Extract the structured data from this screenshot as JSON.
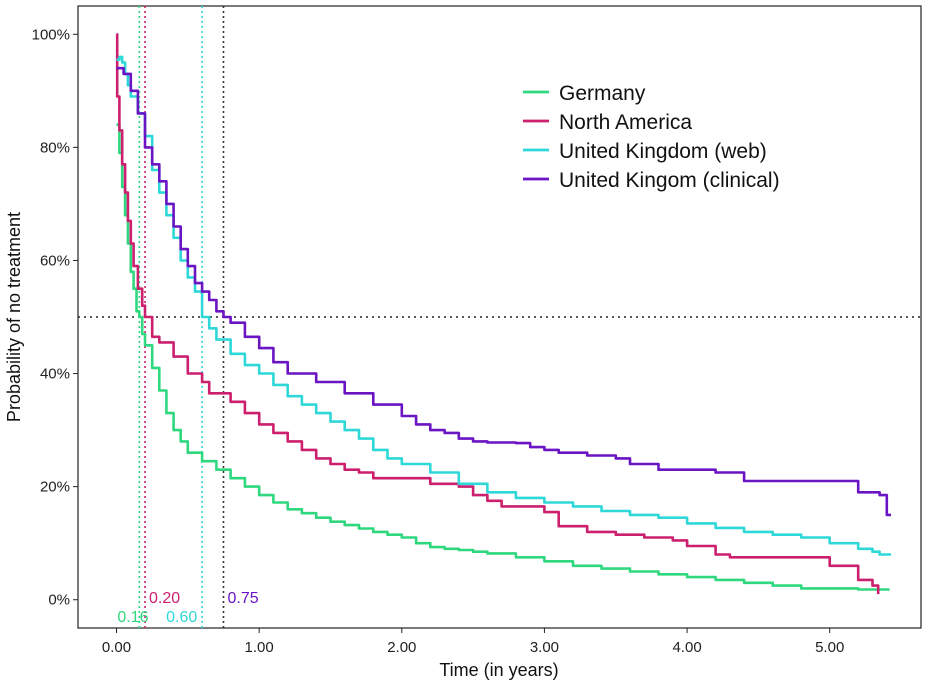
{
  "chart_data": {
    "type": "line",
    "title": "",
    "xlabel": "Time (in years)",
    "ylabel": "Probability of no treatment",
    "xlim": [
      -0.27,
      5.64
    ],
    "ylim": [
      -0.05,
      1.05
    ],
    "x_ticks": [
      0,
      1,
      2,
      3,
      4,
      5
    ],
    "x_tick_labels": [
      "0.00",
      "1.00",
      "2.00",
      "3.00",
      "4.00",
      "5.00"
    ],
    "y_ticks": [
      0,
      0.2,
      0.4,
      0.6,
      0.8,
      1.0
    ],
    "y_tick_labels": [
      "0%",
      "20%",
      "40%",
      "60%",
      "80%",
      "100%"
    ],
    "grid": false,
    "legend_position": "top-right",
    "reference_line_y": 0.5,
    "series": [
      {
        "name": "Germany",
        "color": "#2fd87f",
        "median": 0.16,
        "median_label": "0.16",
        "points": [
          [
            0.0,
            0.84
          ],
          [
            0.02,
            0.79
          ],
          [
            0.04,
            0.73
          ],
          [
            0.06,
            0.68
          ],
          [
            0.08,
            0.63
          ],
          [
            0.1,
            0.58
          ],
          [
            0.12,
            0.55
          ],
          [
            0.14,
            0.51
          ],
          [
            0.16,
            0.5
          ],
          [
            0.18,
            0.47
          ],
          [
            0.2,
            0.45
          ],
          [
            0.25,
            0.41
          ],
          [
            0.3,
            0.37
          ],
          [
            0.35,
            0.33
          ],
          [
            0.4,
            0.3
          ],
          [
            0.45,
            0.28
          ],
          [
            0.5,
            0.26
          ],
          [
            0.6,
            0.245
          ],
          [
            0.7,
            0.23
          ],
          [
            0.8,
            0.215
          ],
          [
            0.9,
            0.2
          ],
          [
            1.0,
            0.185
          ],
          [
            1.1,
            0.172
          ],
          [
            1.2,
            0.16
          ],
          [
            1.3,
            0.153
          ],
          [
            1.4,
            0.145
          ],
          [
            1.5,
            0.138
          ],
          [
            1.6,
            0.132
          ],
          [
            1.7,
            0.126
          ],
          [
            1.8,
            0.12
          ],
          [
            1.9,
            0.115
          ],
          [
            2.0,
            0.11
          ],
          [
            2.1,
            0.1
          ],
          [
            2.2,
            0.093
          ],
          [
            2.3,
            0.09
          ],
          [
            2.4,
            0.088
          ],
          [
            2.5,
            0.085
          ],
          [
            2.6,
            0.082
          ],
          [
            2.8,
            0.075
          ],
          [
            3.0,
            0.068
          ],
          [
            3.2,
            0.06
          ],
          [
            3.4,
            0.055
          ],
          [
            3.6,
            0.05
          ],
          [
            3.8,
            0.045
          ],
          [
            4.0,
            0.04
          ],
          [
            4.2,
            0.035
          ],
          [
            4.4,
            0.03
          ],
          [
            4.6,
            0.025
          ],
          [
            4.8,
            0.02
          ],
          [
            5.0,
            0.02
          ],
          [
            5.2,
            0.018
          ],
          [
            5.42,
            0.018
          ]
        ]
      },
      {
        "name": "North America",
        "color": "#cc1f6e",
        "median": 0.2,
        "median_label": "0.20",
        "points": [
          [
            0.0,
            1.0
          ],
          [
            0.005,
            0.89
          ],
          [
            0.02,
            0.83
          ],
          [
            0.04,
            0.77
          ],
          [
            0.06,
            0.72
          ],
          [
            0.08,
            0.67
          ],
          [
            0.1,
            0.63
          ],
          [
            0.12,
            0.59
          ],
          [
            0.15,
            0.55
          ],
          [
            0.18,
            0.52
          ],
          [
            0.2,
            0.5
          ],
          [
            0.25,
            0.465
          ],
          [
            0.3,
            0.455
          ],
          [
            0.4,
            0.43
          ],
          [
            0.5,
            0.4
          ],
          [
            0.6,
            0.385
          ],
          [
            0.65,
            0.365
          ],
          [
            0.8,
            0.35
          ],
          [
            0.9,
            0.33
          ],
          [
            1.0,
            0.31
          ],
          [
            1.1,
            0.295
          ],
          [
            1.2,
            0.28
          ],
          [
            1.3,
            0.265
          ],
          [
            1.4,
            0.25
          ],
          [
            1.5,
            0.24
          ],
          [
            1.6,
            0.23
          ],
          [
            1.7,
            0.225
          ],
          [
            1.8,
            0.215
          ],
          [
            2.0,
            0.215
          ],
          [
            2.2,
            0.205
          ],
          [
            2.4,
            0.2
          ],
          [
            2.5,
            0.185
          ],
          [
            2.6,
            0.175
          ],
          [
            2.7,
            0.165
          ],
          [
            2.9,
            0.165
          ],
          [
            3.0,
            0.155
          ],
          [
            3.1,
            0.13
          ],
          [
            3.3,
            0.12
          ],
          [
            3.5,
            0.115
          ],
          [
            3.7,
            0.11
          ],
          [
            3.9,
            0.105
          ],
          [
            4.0,
            0.095
          ],
          [
            4.2,
            0.08
          ],
          [
            4.3,
            0.075
          ],
          [
            4.8,
            0.075
          ],
          [
            5.0,
            0.06
          ],
          [
            5.2,
            0.035
          ],
          [
            5.3,
            0.025
          ],
          [
            5.34,
            0.01
          ]
        ]
      },
      {
        "name": "United Kingdom (web)",
        "color": "#2ed8d8",
        "median": 0.6,
        "median_label": "0.60",
        "points": [
          [
            0.0,
            0.955
          ],
          [
            0.02,
            0.96
          ],
          [
            0.04,
            0.95
          ],
          [
            0.06,
            0.93
          ],
          [
            0.08,
            0.91
          ],
          [
            0.1,
            0.89
          ],
          [
            0.15,
            0.86
          ],
          [
            0.2,
            0.82
          ],
          [
            0.25,
            0.76
          ],
          [
            0.3,
            0.72
          ],
          [
            0.35,
            0.68
          ],
          [
            0.4,
            0.64
          ],
          [
            0.45,
            0.6
          ],
          [
            0.5,
            0.57
          ],
          [
            0.55,
            0.545
          ],
          [
            0.6,
            0.5
          ],
          [
            0.65,
            0.48
          ],
          [
            0.7,
            0.46
          ],
          [
            0.8,
            0.435
          ],
          [
            0.9,
            0.415
          ],
          [
            1.0,
            0.4
          ],
          [
            1.1,
            0.38
          ],
          [
            1.2,
            0.36
          ],
          [
            1.3,
            0.345
          ],
          [
            1.4,
            0.33
          ],
          [
            1.5,
            0.315
          ],
          [
            1.6,
            0.3
          ],
          [
            1.7,
            0.285
          ],
          [
            1.8,
            0.265
          ],
          [
            1.9,
            0.25
          ],
          [
            2.0,
            0.24
          ],
          [
            2.2,
            0.225
          ],
          [
            2.4,
            0.205
          ],
          [
            2.6,
            0.19
          ],
          [
            2.8,
            0.18
          ],
          [
            3.0,
            0.172
          ],
          [
            3.2,
            0.165
          ],
          [
            3.4,
            0.157
          ],
          [
            3.6,
            0.15
          ],
          [
            3.8,
            0.145
          ],
          [
            4.0,
            0.135
          ],
          [
            4.2,
            0.127
          ],
          [
            4.4,
            0.12
          ],
          [
            4.6,
            0.115
          ],
          [
            4.8,
            0.11
          ],
          [
            5.0,
            0.1
          ],
          [
            5.2,
            0.09
          ],
          [
            5.3,
            0.085
          ],
          [
            5.35,
            0.08
          ],
          [
            5.43,
            0.08
          ]
        ]
      },
      {
        "name": "United Kingom (clinical)",
        "color": "#6a14c4",
        "median": 0.75,
        "median_label": "0.75",
        "points": [
          [
            0.0,
            0.94
          ],
          [
            0.05,
            0.93
          ],
          [
            0.1,
            0.9
          ],
          [
            0.15,
            0.86
          ],
          [
            0.2,
            0.8
          ],
          [
            0.25,
            0.77
          ],
          [
            0.3,
            0.74
          ],
          [
            0.35,
            0.7
          ],
          [
            0.4,
            0.66
          ],
          [
            0.45,
            0.62
          ],
          [
            0.5,
            0.59
          ],
          [
            0.55,
            0.56
          ],
          [
            0.6,
            0.545
          ],
          [
            0.65,
            0.53
          ],
          [
            0.7,
            0.51
          ],
          [
            0.75,
            0.5
          ],
          [
            0.8,
            0.49
          ],
          [
            0.9,
            0.465
          ],
          [
            1.0,
            0.445
          ],
          [
            1.1,
            0.42
          ],
          [
            1.2,
            0.4
          ],
          [
            1.4,
            0.385
          ],
          [
            1.6,
            0.365
          ],
          [
            1.8,
            0.345
          ],
          [
            2.0,
            0.325
          ],
          [
            2.1,
            0.31
          ],
          [
            2.2,
            0.3
          ],
          [
            2.3,
            0.295
          ],
          [
            2.4,
            0.285
          ],
          [
            2.5,
            0.28
          ],
          [
            2.6,
            0.278
          ],
          [
            2.8,
            0.277
          ],
          [
            2.9,
            0.27
          ],
          [
            3.0,
            0.265
          ],
          [
            3.1,
            0.26
          ],
          [
            3.3,
            0.255
          ],
          [
            3.5,
            0.25
          ],
          [
            3.6,
            0.24
          ],
          [
            3.8,
            0.23
          ],
          [
            4.0,
            0.23
          ],
          [
            4.2,
            0.225
          ],
          [
            4.4,
            0.21
          ],
          [
            4.6,
            0.21
          ],
          [
            5.0,
            0.21
          ],
          [
            5.2,
            0.19
          ],
          [
            5.3,
            0.19
          ],
          [
            5.35,
            0.185
          ],
          [
            5.4,
            0.15
          ],
          [
            5.43,
            0.15
          ]
        ]
      }
    ]
  }
}
